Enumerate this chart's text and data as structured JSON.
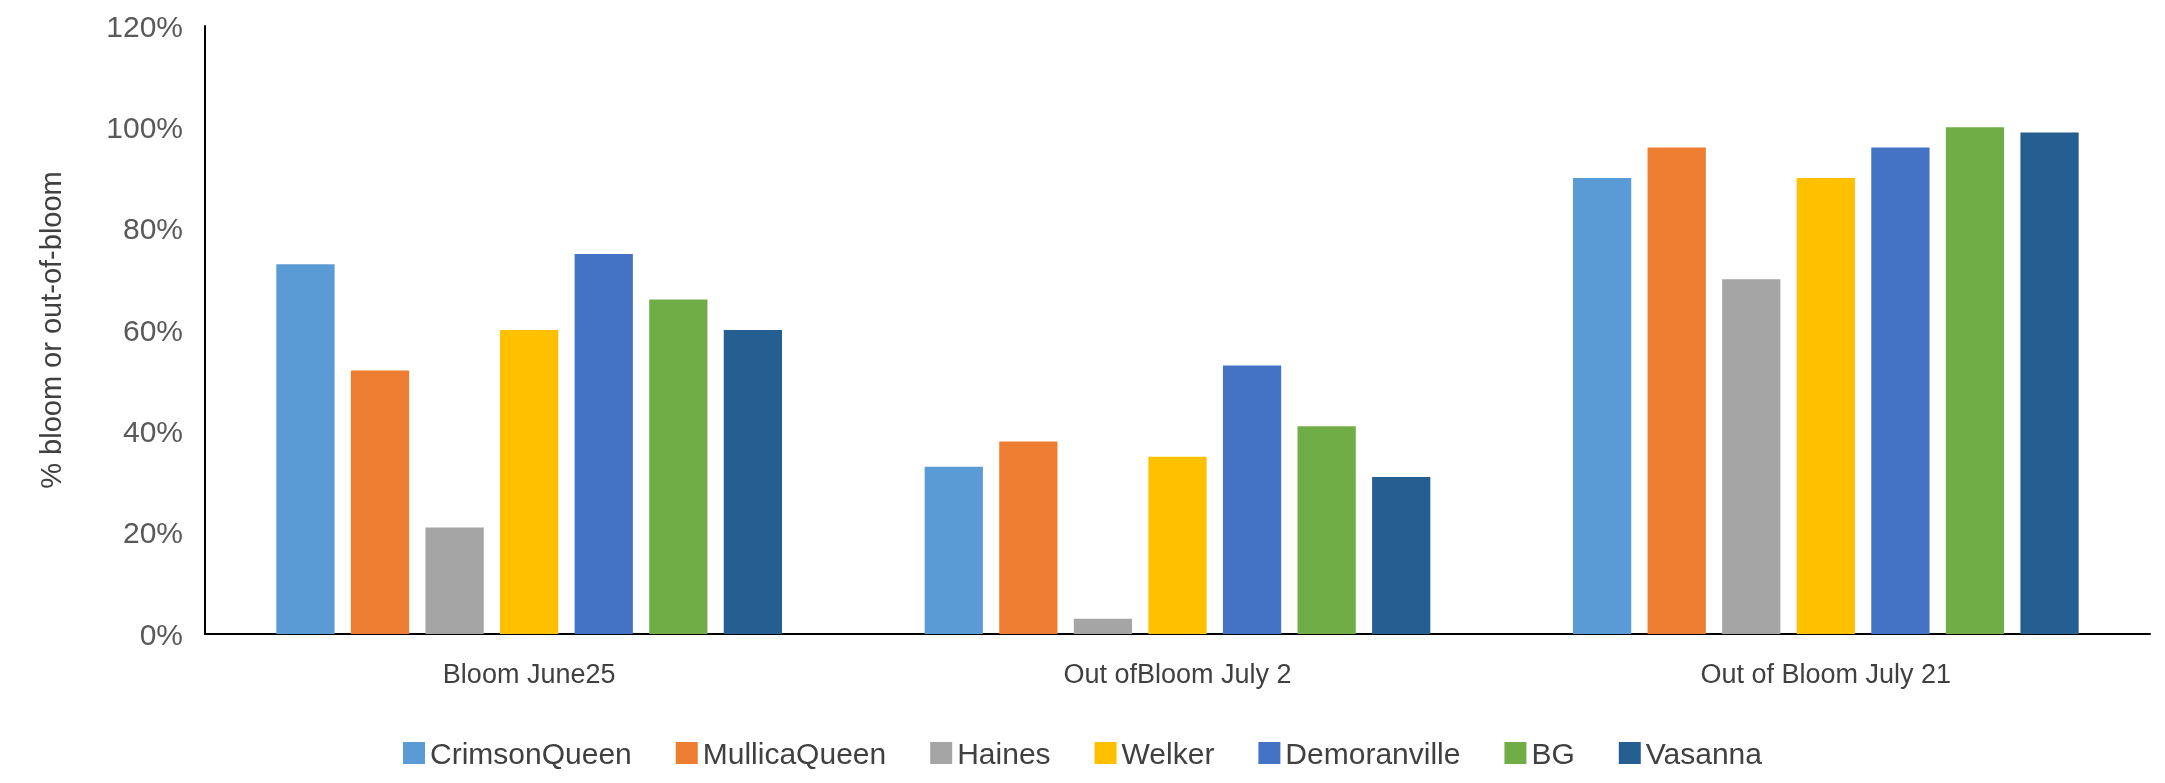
{
  "chart_data": {
    "type": "bar",
    "ylabel": "% bloom or out-of-bloom",
    "categories": [
      "Bloom June25",
      "Out ofBloom July 2",
      "Out of Bloom July 21"
    ],
    "series": [
      {
        "name": "CrimsonQueen",
        "color": "#5b9bd5",
        "values": [
          73,
          33,
          90
        ]
      },
      {
        "name": "MullicaQueen",
        "color": "#ed7d31",
        "values": [
          52,
          38,
          96
        ]
      },
      {
        "name": "Haines",
        "color": "#a5a5a5",
        "values": [
          21,
          3,
          70
        ]
      },
      {
        "name": "Welker",
        "color": "#ffc000",
        "values": [
          60,
          35,
          90
        ]
      },
      {
        "name": "Demoranville",
        "color": "#4472c4",
        "values": [
          75,
          53,
          96
        ]
      },
      {
        "name": "BG",
        "color": "#70ad47",
        "values": [
          66,
          41,
          100
        ]
      },
      {
        "name": "Vasanna",
        "color": "#255e91",
        "values": [
          60,
          31,
          99
        ]
      }
    ],
    "ylim": [
      0,
      120
    ],
    "yticks": [
      {
        "value": 0,
        "label": "0%"
      },
      {
        "value": 20,
        "label": "20%"
      },
      {
        "value": 40,
        "label": "40%"
      },
      {
        "value": 60,
        "label": "60%"
      },
      {
        "value": 80,
        "label": "80%"
      },
      {
        "value": 100,
        "label": "100%"
      },
      {
        "value": 120,
        "label": "120%"
      }
    ],
    "grid": false,
    "legend": "bottom"
  }
}
